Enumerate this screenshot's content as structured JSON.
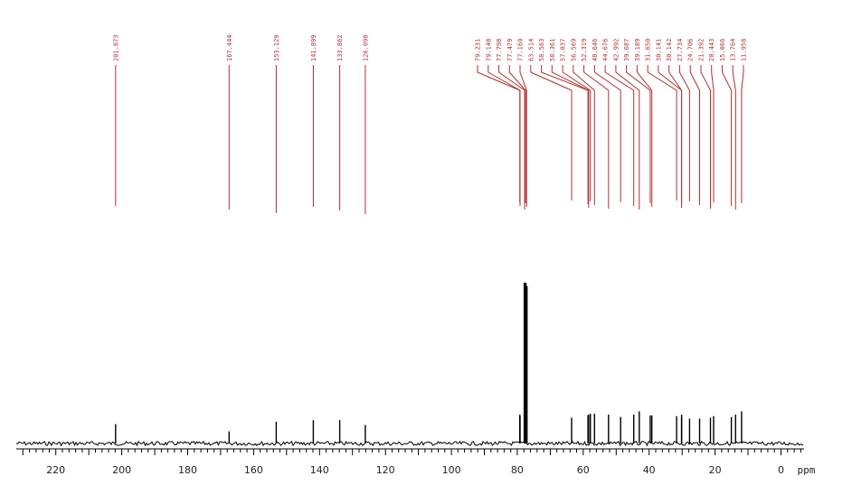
{
  "chart_data": {
    "type": "line",
    "title": "",
    "xlabel": "ppm",
    "ylabel": "",
    "x_axis_reversed": true,
    "xlim": [
      232,
      -7
    ],
    "x_ticks": [
      220,
      200,
      180,
      160,
      140,
      120,
      100,
      80,
      60,
      40,
      20,
      0
    ],
    "x_tick_labels": [
      "220",
      "200",
      "180",
      "160",
      "140",
      "120",
      "100",
      "80",
      "60",
      "40",
      "20",
      "0"
    ],
    "grid": false,
    "legend": "none",
    "line_color": "#000000",
    "label_color": "#b03030",
    "peak_labels": [
      "201.873",
      "167.444",
      "153.129",
      "141.899",
      "133.862",
      "126.098",
      "79.231",
      "79.148",
      "77.798",
      "77.479",
      "77.160",
      "63.514",
      "58.563",
      "58.361",
      "57.837",
      "56.569",
      "52.319",
      "48.646",
      "44.676",
      "42.992",
      "39.687",
      "39.189",
      "31.650",
      "30.141",
      "30.142",
      "27.734",
      "24.706",
      "21.392",
      "20.443",
      "15.066",
      "13.764",
      "11.958"
    ],
    "peaks": [
      {
        "ppm": 201.873,
        "height": 0.12
      },
      {
        "ppm": 167.444,
        "height": 0.075
      },
      {
        "ppm": 153.129,
        "height": 0.135
      },
      {
        "ppm": 141.899,
        "height": 0.145
      },
      {
        "ppm": 133.862,
        "height": 0.145
      },
      {
        "ppm": 126.098,
        "height": 0.115
      },
      {
        "ppm": 79.231,
        "height": 0.18
      },
      {
        "ppm": 79.148,
        "height": 0.17
      },
      {
        "ppm": 77.798,
        "height": 1.0
      },
      {
        "ppm": 77.479,
        "height": 1.0
      },
      {
        "ppm": 77.16,
        "height": 0.98
      },
      {
        "ppm": 63.514,
        "height": 0.16
      },
      {
        "ppm": 58.563,
        "height": 0.175
      },
      {
        "ppm": 58.361,
        "height": 0.18
      },
      {
        "ppm": 57.837,
        "height": 0.185
      },
      {
        "ppm": 56.569,
        "height": 0.185
      },
      {
        "ppm": 52.319,
        "height": 0.18
      },
      {
        "ppm": 48.646,
        "height": 0.165
      },
      {
        "ppm": 44.676,
        "height": 0.18
      },
      {
        "ppm": 42.992,
        "height": 0.2
      },
      {
        "ppm": 39.687,
        "height": 0.175
      },
      {
        "ppm": 39.189,
        "height": 0.175
      },
      {
        "ppm": 31.65,
        "height": 0.17
      },
      {
        "ppm": 30.141,
        "height": 0.18
      },
      {
        "ppm": 30.142,
        "height": 0.16
      },
      {
        "ppm": 27.734,
        "height": 0.155
      },
      {
        "ppm": 24.706,
        "height": 0.155
      },
      {
        "ppm": 21.392,
        "height": 0.16
      },
      {
        "ppm": 20.443,
        "height": 0.17
      },
      {
        "ppm": 15.066,
        "height": 0.165
      },
      {
        "ppm": 13.764,
        "height": 0.18
      },
      {
        "ppm": 11.958,
        "height": 0.2
      }
    ]
  }
}
